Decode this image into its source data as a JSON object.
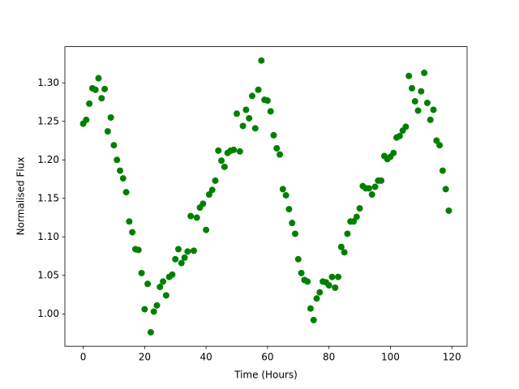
{
  "chart_data": {
    "type": "scatter",
    "xlabel": "Time (Hours)",
    "ylabel": "Normalised Flux",
    "color": "#008000",
    "x": [
      0,
      1,
      2,
      3,
      4,
      5,
      6,
      7,
      8,
      9,
      10,
      11,
      12,
      13,
      14,
      15,
      16,
      17,
      18,
      19,
      20,
      21,
      22,
      23,
      24,
      25,
      26,
      27,
      28,
      29,
      30,
      31,
      32,
      33,
      34,
      35,
      36,
      37,
      38,
      39,
      40,
      41,
      42,
      43,
      44,
      45,
      46,
      47,
      48,
      49,
      50,
      51,
      52,
      53,
      54,
      55,
      56,
      57,
      58,
      59,
      60,
      61,
      62,
      63,
      64,
      65,
      66,
      67,
      68,
      69,
      70,
      71,
      72,
      73,
      74,
      75,
      76,
      77,
      78,
      79,
      80,
      81,
      82,
      83,
      84,
      85,
      86,
      87,
      88,
      89,
      90,
      91,
      92,
      93,
      94,
      95,
      96,
      97,
      98,
      99,
      100,
      101,
      102,
      103,
      104,
      105,
      106,
      107,
      108,
      109,
      110,
      111,
      112,
      113,
      114,
      115,
      116,
      117,
      118,
      119
    ],
    "values": [
      1.247,
      1.252,
      1.273,
      1.293,
      1.291,
      1.306,
      1.28,
      1.292,
      1.237,
      1.255,
      1.219,
      1.2,
      1.186,
      1.176,
      1.158,
      1.12,
      1.106,
      1.084,
      1.083,
      1.053,
      1.006,
      1.039,
      0.976,
      1.003,
      1.011,
      1.035,
      1.042,
      1.024,
      1.048,
      1.051,
      1.071,
      1.084,
      1.066,
      1.073,
      1.081,
      1.127,
      1.082,
      1.125,
      1.138,
      1.143,
      1.109,
      1.155,
      1.161,
      1.173,
      1.212,
      1.199,
      1.191,
      1.209,
      1.212,
      1.213,
      1.26,
      1.211,
      1.244,
      1.265,
      1.254,
      1.283,
      1.241,
      1.291,
      1.329,
      1.278,
      1.277,
      1.263,
      1.232,
      1.215,
      1.207,
      1.162,
      1.154,
      1.136,
      1.118,
      1.104,
      1.071,
      1.053,
      1.044,
      1.042,
      1.007,
      0.992,
      1.02,
      1.028,
      1.042,
      1.041,
      1.037,
      1.048,
      1.034,
      1.048,
      1.087,
      1.08,
      1.104,
      1.12,
      1.12,
      1.126,
      1.137,
      1.166,
      1.163,
      1.163,
      1.155,
      1.165,
      1.173,
      1.173,
      1.205,
      1.201,
      1.204,
      1.209,
      1.229,
      1.231,
      1.238,
      1.243,
      1.309,
      1.293,
      1.276,
      1.264,
      1.289,
      1.313,
      1.274,
      1.252,
      1.265,
      1.225,
      1.219,
      1.186,
      1.162,
      1.134
    ],
    "xlim": [
      -5.95,
      124.95
    ],
    "ylim": [
      0.958,
      1.347
    ],
    "xticks": [
      0,
      20,
      40,
      60,
      80,
      100,
      120
    ],
    "yticks": [
      {
        "value": 1.0,
        "label": "1.00"
      },
      {
        "value": 1.05,
        "label": "1.05"
      },
      {
        "value": 1.1,
        "label": "1.10"
      },
      {
        "value": 1.15,
        "label": "1.15"
      },
      {
        "value": 1.2,
        "label": "1.20"
      },
      {
        "value": 1.25,
        "label": "1.25"
      },
      {
        "value": 1.3,
        "label": "1.30"
      }
    ]
  }
}
